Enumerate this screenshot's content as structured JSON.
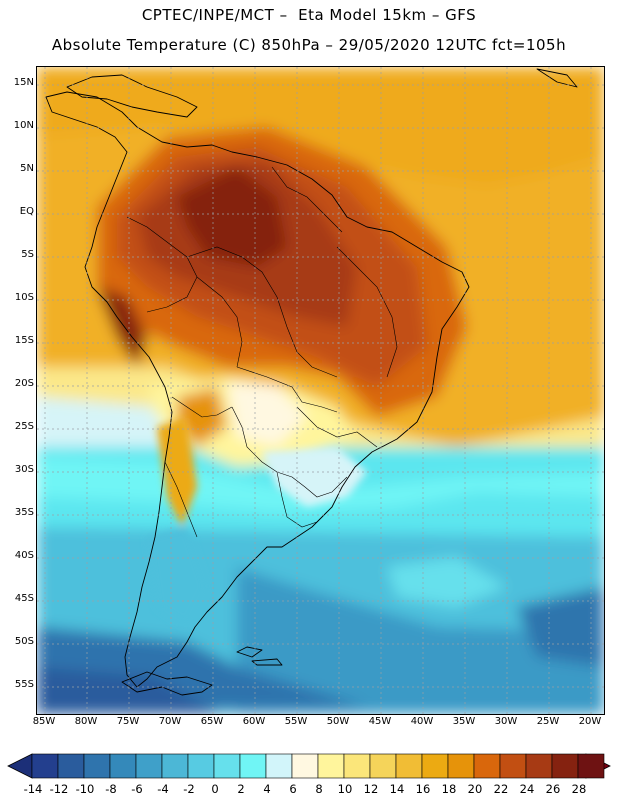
{
  "header": {
    "title_line1": "CPTEC/INPE/MCT –  Eta Model 15km – GFS",
    "title_line2": "Absolute Temperature (C) 850hPa – 29/05/2020 12UTC fct=105h"
  },
  "map": {
    "lat_labels": [
      "15N",
      "10N",
      "5N",
      "EQ",
      "5S",
      "10S",
      "15S",
      "20S",
      "25S",
      "30S",
      "35S",
      "40S",
      "45S",
      "50S",
      "55S"
    ],
    "lon_labels": [
      "85W",
      "80W",
      "75W",
      "70W",
      "65W",
      "60W",
      "55W",
      "50W",
      "45W",
      "40W",
      "35W",
      "30W",
      "25W",
      "20W"
    ]
  },
  "colorbar": {
    "labels": [
      "-14",
      "-12",
      "-10",
      "-8",
      "-6",
      "-4",
      "-2",
      "0",
      "2",
      "4",
      "6",
      "8",
      "10",
      "12",
      "14",
      "16",
      "18",
      "20",
      "22",
      "24",
      "26",
      "28"
    ],
    "colors": [
      "#233f8e",
      "#2a5c9d",
      "#2f74ad",
      "#3489ba",
      "#3fa0c9",
      "#4cb7d6",
      "#57cbe2",
      "#66e0ec",
      "#70f5f5",
      "#d2f5fa",
      "#fff8e1",
      "#fff59c",
      "#fbe67a",
      "#f5d45a",
      "#f1bd35",
      "#ecaa12",
      "#e6930a",
      "#d9670c",
      "#c24f12",
      "#a73a14",
      "#852210",
      "#6e1212"
    ]
  }
}
